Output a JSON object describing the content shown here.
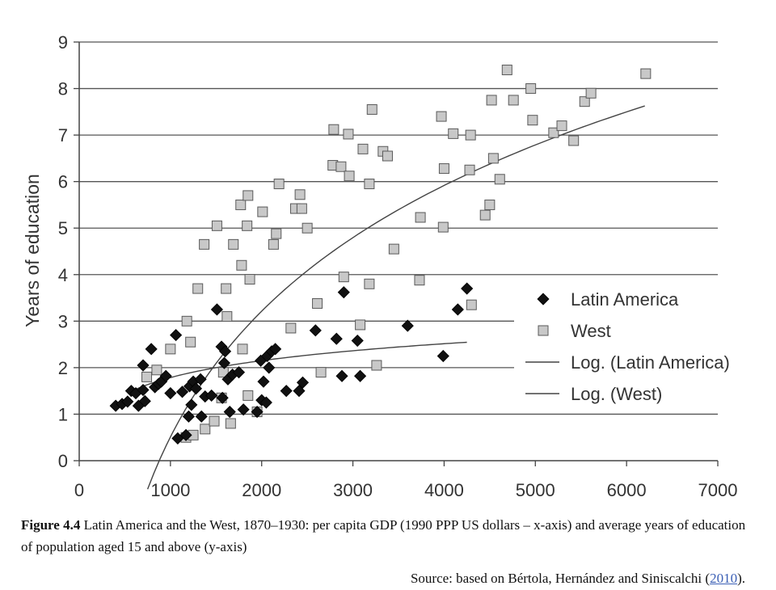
{
  "chart_data": {
    "type": "scatter",
    "ylabel": "Years of education",
    "xlim": [
      0,
      7000
    ],
    "ylim": [
      0,
      9
    ],
    "x_ticks": [
      0,
      1000,
      2000,
      3000,
      4000,
      5000,
      6000,
      7000
    ],
    "y_ticks": [
      0,
      1,
      2,
      3,
      4,
      5,
      6,
      7,
      8,
      9
    ],
    "grid": "horizontal",
    "legend_position": "right",
    "series": [
      {
        "name": "Latin America",
        "marker": "diamond",
        "color": "#111111",
        "points": [
          [
            400,
            1.18
          ],
          [
            470,
            1.22
          ],
          [
            530,
            1.27
          ],
          [
            570,
            1.5
          ],
          [
            620,
            1.45
          ],
          [
            650,
            1.18
          ],
          [
            700,
            1.52
          ],
          [
            700,
            2.05
          ],
          [
            720,
            1.28
          ],
          [
            790,
            2.4
          ],
          [
            830,
            1.58
          ],
          [
            870,
            1.65
          ],
          [
            900,
            1.7
          ],
          [
            950,
            1.82
          ],
          [
            1000,
            1.45
          ],
          [
            1060,
            2.7
          ],
          [
            1080,
            0.48
          ],
          [
            1130,
            1.48
          ],
          [
            1170,
            0.55
          ],
          [
            1200,
            0.95
          ],
          [
            1210,
            1.6
          ],
          [
            1230,
            1.2
          ],
          [
            1250,
            1.7
          ],
          [
            1280,
            1.55
          ],
          [
            1330,
            1.75
          ],
          [
            1340,
            0.95
          ],
          [
            1380,
            1.38
          ],
          [
            1450,
            1.4
          ],
          [
            1510,
            3.25
          ],
          [
            1560,
            2.45
          ],
          [
            1570,
            1.35
          ],
          [
            1590,
            2.1
          ],
          [
            1600,
            2.35
          ],
          [
            1630,
            1.75
          ],
          [
            1650,
            1.05
          ],
          [
            1680,
            1.85
          ],
          [
            1750,
            1.9
          ],
          [
            1800,
            1.1
          ],
          [
            1950,
            1.05
          ],
          [
            1990,
            2.15
          ],
          [
            2000,
            1.3
          ],
          [
            2020,
            1.7
          ],
          [
            2050,
            1.25
          ],
          [
            2060,
            2.25
          ],
          [
            2080,
            2.0
          ],
          [
            2110,
            2.35
          ],
          [
            2150,
            2.4
          ],
          [
            2270,
            1.5
          ],
          [
            2410,
            1.5
          ],
          [
            2450,
            1.68
          ],
          [
            2590,
            2.8
          ],
          [
            2820,
            2.62
          ],
          [
            2880,
            1.82
          ],
          [
            2900,
            3.62
          ],
          [
            3050,
            2.58
          ],
          [
            3080,
            1.82
          ],
          [
            3600,
            2.9
          ],
          [
            3990,
            2.25
          ],
          [
            4150,
            3.25
          ],
          [
            4250,
            3.7
          ]
        ]
      },
      {
        "name": "West",
        "marker": "square",
        "color": "#c8c8c8",
        "points": [
          [
            740,
            1.8
          ],
          [
            850,
            1.95
          ],
          [
            1000,
            2.4
          ],
          [
            1180,
            3.0
          ],
          [
            1220,
            2.55
          ],
          [
            1170,
            0.5
          ],
          [
            1250,
            0.55
          ],
          [
            1300,
            3.7
          ],
          [
            1370,
            4.65
          ],
          [
            1380,
            0.68
          ],
          [
            1480,
            0.85
          ],
          [
            1510,
            5.05
          ],
          [
            1560,
            1.35
          ],
          [
            1580,
            1.9
          ],
          [
            1610,
            3.7
          ],
          [
            1620,
            3.1
          ],
          [
            1660,
            0.8
          ],
          [
            1690,
            4.65
          ],
          [
            1770,
            5.5
          ],
          [
            1780,
            4.2
          ],
          [
            1790,
            2.4
          ],
          [
            1840,
            5.05
          ],
          [
            1850,
            5.7
          ],
          [
            1850,
            1.4
          ],
          [
            1870,
            3.9
          ],
          [
            1950,
            1.05
          ],
          [
            2010,
            5.35
          ],
          [
            2130,
            4.65
          ],
          [
            2160,
            4.88
          ],
          [
            2190,
            5.95
          ],
          [
            2320,
            2.85
          ],
          [
            2370,
            5.42
          ],
          [
            2420,
            5.72
          ],
          [
            2440,
            5.42
          ],
          [
            2500,
            5.0
          ],
          [
            2610,
            3.38
          ],
          [
            2650,
            1.9
          ],
          [
            2780,
            6.35
          ],
          [
            2790,
            7.12
          ],
          [
            2870,
            6.32
          ],
          [
            2900,
            3.95
          ],
          [
            2950,
            7.02
          ],
          [
            2960,
            6.12
          ],
          [
            3080,
            2.92
          ],
          [
            3110,
            6.7
          ],
          [
            3180,
            5.95
          ],
          [
            3180,
            3.8
          ],
          [
            3210,
            7.55
          ],
          [
            3260,
            2.05
          ],
          [
            3330,
            6.65
          ],
          [
            3380,
            6.55
          ],
          [
            3450,
            4.55
          ],
          [
            3730,
            3.88
          ],
          [
            3740,
            5.23
          ],
          [
            3970,
            7.4
          ],
          [
            3990,
            5.02
          ],
          [
            4000,
            6.28
          ],
          [
            4100,
            7.03
          ],
          [
            4280,
            6.25
          ],
          [
            4290,
            7.0
          ],
          [
            4300,
            3.35
          ],
          [
            4450,
            5.28
          ],
          [
            4500,
            5.5
          ],
          [
            4520,
            7.75
          ],
          [
            4540,
            6.5
          ],
          [
            4610,
            6.05
          ],
          [
            4690,
            8.4
          ],
          [
            4760,
            7.75
          ],
          [
            4950,
            8.0
          ],
          [
            4970,
            7.32
          ],
          [
            5200,
            7.05
          ],
          [
            5290,
            7.2
          ],
          [
            5420,
            6.88
          ],
          [
            5540,
            7.72
          ],
          [
            5610,
            7.9
          ],
          [
            6210,
            8.32
          ]
        ]
      },
      {
        "name": "Log. (Latin America)",
        "type": "line",
        "color": "#444444",
        "equation": "0.525*ln(x)-1.84",
        "x_range": [
          600,
          4250
        ]
      },
      {
        "name": "Log. (West)",
        "type": "line",
        "color": "#444444",
        "equation": "3.9*ln(x)-26.43",
        "x_range": [
          750,
          6200
        ]
      }
    ]
  },
  "caption": {
    "label": "Figure 4.4",
    "text": " Latin America and the West, 1870–1930: per capita GDP (1990 PPP US dollars – x-axis) and average years of education of population aged 15 and above (y-axis)"
  },
  "source": {
    "prefix": "Source: based on Bértola, Hernández and Siniscalchi (",
    "link": "2010",
    "suffix": ")."
  }
}
